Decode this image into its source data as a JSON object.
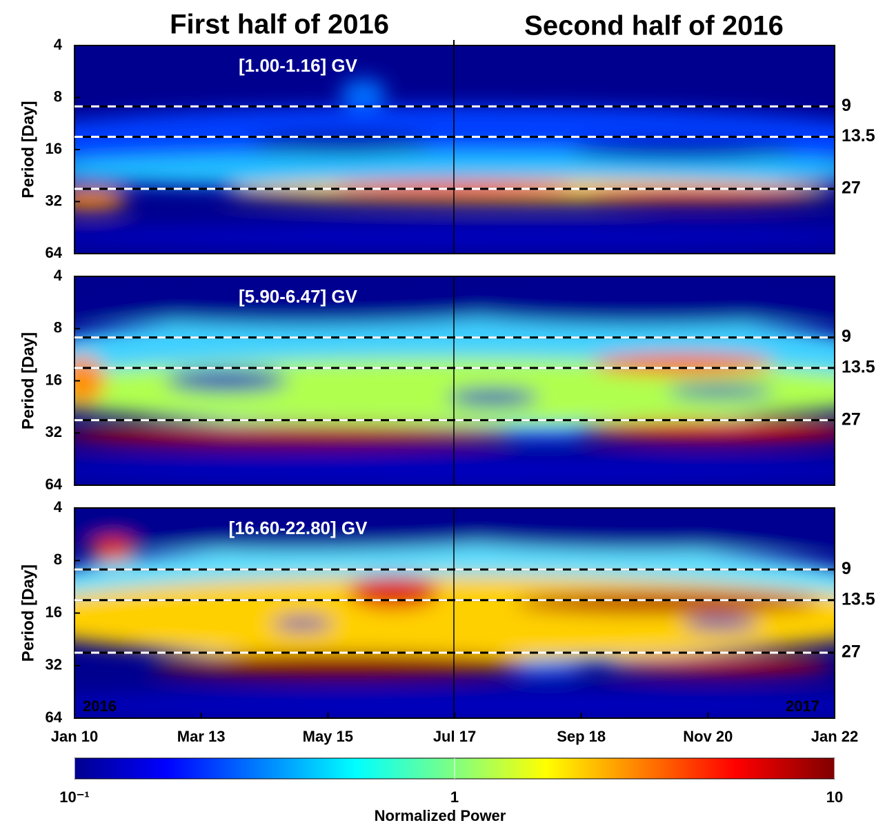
{
  "column_titles": [
    "First half of 2016",
    "Second half of 2016"
  ],
  "chart_data": [
    {
      "type": "heatmap",
      "label": "[1.00-1.16] GV",
      "y_label": "Period [Day]",
      "ylim": [
        4,
        64
      ],
      "yticks": [
        4,
        8,
        16,
        32,
        64
      ],
      "y_log": true,
      "reference_lines": [
        9,
        13.5,
        27
      ]
    },
    {
      "type": "heatmap",
      "label": "[5.90-6.47] GV",
      "y_label": "Period [Day]",
      "ylim": [
        4,
        64
      ],
      "yticks": [
        4,
        8,
        16,
        32,
        64
      ],
      "y_log": true,
      "reference_lines": [
        9,
        13.5,
        27
      ]
    },
    {
      "type": "heatmap",
      "label": "[16.60-22.80] GV",
      "y_label": "Period [Day]",
      "ylim": [
        4,
        64
      ],
      "yticks": [
        4,
        8,
        16,
        32,
        64
      ],
      "y_log": true,
      "reference_lines": [
        9,
        13.5,
        27
      ],
      "categories": [
        "Jan 10",
        "Mar 13",
        "May 15",
        "Jul 17",
        "Sep 18",
        "Nov 20",
        "Jan 22"
      ],
      "year_labels": [
        "2016",
        "2017"
      ]
    }
  ],
  "colorbar": {
    "label": "Normalized Power",
    "lim": [
      0.1,
      10
    ],
    "log": true,
    "ticks": [
      {
        "value": 0.1,
        "label": "10⁻¹"
      },
      1,
      10
    ]
  }
}
